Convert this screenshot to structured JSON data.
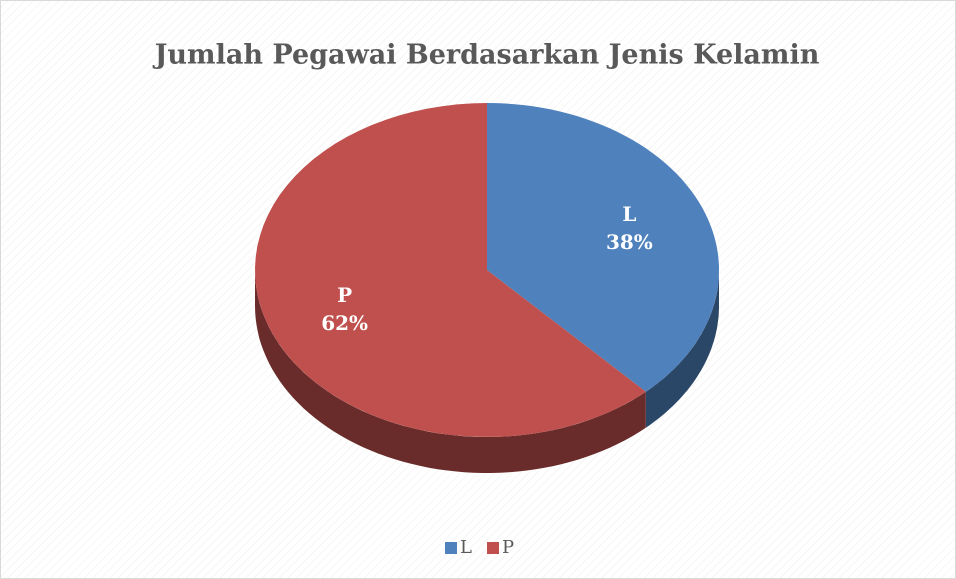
{
  "chart_data": {
    "type": "pie",
    "title": "Jumlah Pegawai Berdasarkan Jenis Kelamin",
    "categories": [
      "L",
      "P"
    ],
    "values": [
      38,
      62
    ],
    "value_labels": [
      "38%",
      "62%"
    ],
    "colors": [
      "#4f81bd",
      "#c0504d"
    ],
    "legend": "bottom"
  }
}
